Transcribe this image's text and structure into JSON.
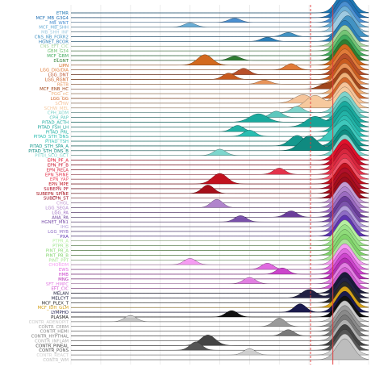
{
  "chart_data": {
    "type": "ridgeline",
    "title": "",
    "xlabel": "",
    "ylabel": "",
    "xlim": [
      0,
      1
    ],
    "grid": true,
    "legend": "none",
    "reference_lines": [
      {
        "x": 0.805,
        "style": "dashed",
        "color": "#e23a3a"
      },
      {
        "x": 0.88,
        "style": "solid",
        "color": "#e23a3a"
      }
    ],
    "series": [
      {
        "name": "ETMR",
        "color": "#1f78b4",
        "mode": 0.92,
        "minor": []
      },
      {
        "name": "MCF_MB_G3G4",
        "color": "#2171b5",
        "mode": 0.92,
        "minor": []
      },
      {
        "name": "MB_WNT",
        "color": "#4a8fd1",
        "mode": 0.92,
        "minor": [
          [
            0.55,
            0.02,
            0.2
          ]
        ]
      },
      {
        "name": "MCF_MB_SHH",
        "color": "#6baed6",
        "mode": 0.92,
        "minor": [
          [
            0.4,
            0.02,
            0.2
          ]
        ]
      },
      {
        "name": "MB_SHH_INF",
        "color": "#9ecae1",
        "mode": 0.92,
        "minor": []
      },
      {
        "name": "CNS_NB_FOXR2",
        "color": "#4393c3",
        "mode": 0.93,
        "minor": [
          [
            0.73,
            0.02,
            0.2
          ]
        ]
      },
      {
        "name": "HGNET_BCOR",
        "color": "#2c7fb8",
        "mode": 0.92,
        "minor": [
          [
            0.66,
            0.02,
            0.2
          ]
        ]
      },
      {
        "name": "CNS_EFT_CIC",
        "color": "#a8d5a2",
        "mode": 0.92,
        "minor": []
      },
      {
        "name": "GBM_G34",
        "color": "#74c476",
        "mode": 0.92,
        "minor": []
      },
      {
        "name": "MCF_GBM",
        "color": "#41ab5d",
        "mode": 0.92,
        "minor": []
      },
      {
        "name": "DLGNT",
        "color": "#2e7d32",
        "mode": 0.92,
        "minor": [
          [
            0.55,
            0.02,
            0.2
          ]
        ]
      },
      {
        "name": "LIPN",
        "color": "#d2691e",
        "mode": 0.92,
        "minor": [
          [
            0.45,
            0.025,
            0.5
          ]
        ]
      },
      {
        "name": "LGG_DIG/DIA",
        "color": "#e07b39",
        "mode": 0.92,
        "minor": [
          [
            0.74,
            0.02,
            0.3
          ]
        ]
      },
      {
        "name": "LGG_DNT",
        "color": "#b8502a",
        "mode": 0.92,
        "minor": [
          [
            0.58,
            0.02,
            0.3
          ]
        ]
      },
      {
        "name": "LGG_RGNT",
        "color": "#c85a1e",
        "mode": 0.92,
        "minor": [
          [
            0.53,
            0.02,
            0.3
          ]
        ]
      },
      {
        "name": "RETB",
        "color": "#e8945a",
        "mode": 0.92,
        "minor": [
          [
            0.65,
            0.02,
            0.2
          ]
        ]
      },
      {
        "name": "MCF_ENB_HC",
        "color": "#a0451a",
        "mode": 0.92,
        "minor": [
          [
            0.85,
            0.02,
            0.2
          ]
        ]
      },
      {
        "name": "PGG_nC",
        "color": "#f0b27a",
        "mode": 0.92,
        "minor": []
      },
      {
        "name": "LGG_GG",
        "color": "#d46a2e",
        "mode": 0.92,
        "minor": []
      },
      {
        "name": "SCHW",
        "color": "#f5c49b",
        "mode": 0.92,
        "minor": [
          [
            0.78,
            0.03,
            0.4
          ]
        ]
      },
      {
        "name": "SCHW_MEL",
        "color": "#f6c99e",
        "mode": 0.92,
        "minor": [
          [
            0.82,
            0.03,
            0.6
          ]
        ]
      },
      {
        "name": "CPH_ADM",
        "color": "#7fd3cb",
        "mode": 0.92,
        "minor": [
          [
            0.76,
            0.02,
            0.3
          ]
        ]
      },
      {
        "name": "CPH_PAP",
        "color": "#5cc7bd",
        "mode": 0.92,
        "minor": [
          [
            0.69,
            0.02,
            0.3
          ]
        ]
      },
      {
        "name": "PITAD_ACTH",
        "color": "#1aaa9e",
        "mode": 0.92,
        "minor": [
          [
            0.63,
            0.03,
            0.4
          ]
        ]
      },
      {
        "name": "PITAD_FSH_LH",
        "color": "#17a398",
        "mode": 0.92,
        "minor": [
          [
            0.82,
            0.03,
            0.5
          ]
        ]
      },
      {
        "name": "PITAD_PRL",
        "color": "#22b2a6",
        "mode": 0.92,
        "minor": [
          [
            0.56,
            0.02,
            0.3
          ]
        ]
      },
      {
        "name": "PITAD_STH_DNS",
        "color": "#2bbdb1",
        "mode": 0.92,
        "minor": [
          [
            0.6,
            0.02,
            0.3
          ]
        ]
      },
      {
        "name": "PITAD_TSH",
        "color": "#3ec7bb",
        "mode": 0.92,
        "minor": [
          [
            0.87,
            0.02,
            0.3
          ]
        ]
      },
      {
        "name": "PITAD_STH_SPA_A",
        "color": "#14998e",
        "mode": 0.92,
        "minor": [
          [
            0.76,
            0.025,
            0.5
          ]
        ]
      },
      {
        "name": "PITAD_STH_DNS_B",
        "color": "#0f8a80",
        "mode": 0.92,
        "minor": [
          [
            0.8,
            0.03,
            0.7
          ]
        ]
      },
      {
        "name": "PITUI_SCO_GCT",
        "color": "#7ed6cd",
        "mode": 0.92,
        "minor": [
          [
            0.5,
            0.02,
            0.3
          ]
        ]
      },
      {
        "name": "EPN_PF_A",
        "color": "#e0112b",
        "mode": 0.92,
        "minor": []
      },
      {
        "name": "EPN_PF_B",
        "color": "#c9102a",
        "mode": 0.92,
        "minor": []
      },
      {
        "name": "EPN_RELA",
        "color": "#d7263d",
        "mode": 0.92,
        "minor": []
      },
      {
        "name": "EPN_SPINE",
        "color": "#e3324a",
        "mode": 0.92,
        "minor": [
          [
            0.7,
            0.02,
            0.3
          ]
        ]
      },
      {
        "name": "EPN_YAP",
        "color": "#ef5368",
        "mode": 0.92,
        "minor": []
      },
      {
        "name": "EPN_MPE",
        "color": "#c1121f",
        "mode": 0.92,
        "minor": [
          [
            0.5,
            0.025,
            0.5
          ]
        ]
      },
      {
        "name": "SUBEPN_PF",
        "color": "#b0102a",
        "mode": 0.92,
        "minor": []
      },
      {
        "name": "SUBEPN_SPINE",
        "color": "#a50f1a",
        "mode": 0.92,
        "minor": [
          [
            0.46,
            0.02,
            0.4
          ]
        ]
      },
      {
        "name": "SUBEPN_ST",
        "color": "#9b0d20",
        "mode": 0.92,
        "minor": []
      },
      {
        "name": "CHGL",
        "color": "#c39bd3",
        "mode": 0.92,
        "minor": []
      },
      {
        "name": "LGG_SEGA",
        "color": "#b084cc",
        "mode": 0.92,
        "minor": [
          [
            0.49,
            0.02,
            0.4
          ]
        ]
      },
      {
        "name": "LGG_PA",
        "color": "#9b6bc0",
        "mode": 0.92,
        "minor": []
      },
      {
        "name": "ANA_PA",
        "color": "#6a3d9a",
        "mode": 0.92,
        "minor": [
          [
            0.74,
            0.02,
            0.3
          ]
        ]
      },
      {
        "name": "HGNET_MN1",
        "color": "#7b52ab",
        "mode": 0.92,
        "minor": [
          [
            0.57,
            0.02,
            0.3
          ]
        ]
      },
      {
        "name": "IHG",
        "color": "#b39ddb",
        "mode": 0.92,
        "minor": []
      },
      {
        "name": "LGG_MYB",
        "color": "#8e6cc4",
        "mode": 0.92,
        "minor": []
      },
      {
        "name": "PXA",
        "color": "#5e35b1",
        "mode": 0.92,
        "minor": []
      },
      {
        "name": "PTPR_A",
        "color": "#b6f0a0",
        "mode": 0.92,
        "minor": []
      },
      {
        "name": "PTPR_B",
        "color": "#9be38a",
        "mode": 0.92,
        "minor": []
      },
      {
        "name": "PINT_PB_A",
        "color": "#8fdc7a",
        "mode": 0.92,
        "minor": []
      },
      {
        "name": "PINT_PB_B",
        "color": "#7fd36a",
        "mode": 0.92,
        "minor": []
      },
      {
        "name": "PINT_PPT",
        "color": "#a9e596",
        "mode": 0.92,
        "minor": []
      },
      {
        "name": "CHORDM",
        "color": "#f59cf2",
        "mode": 0.92,
        "minor": [
          [
            0.4,
            0.02,
            0.3
          ]
        ]
      },
      {
        "name": "EWS",
        "color": "#e06ce0",
        "mode": 0.92,
        "minor": [
          [
            0.66,
            0.02,
            0.3
          ]
        ]
      },
      {
        "name": "HMB",
        "color": "#cc44cc",
        "mode": 0.92,
        "minor": [
          [
            0.71,
            0.02,
            0.3
          ]
        ]
      },
      {
        "name": "MNG",
        "color": "#b52fb5",
        "mode": 0.92,
        "minor": []
      },
      {
        "name": "SFT_HMPC",
        "color": "#e27fe2",
        "mode": 0.92,
        "minor": [
          [
            0.6,
            0.02,
            0.3
          ]
        ]
      },
      {
        "name": "EFT_CIC",
        "color": "#d15cd1",
        "mode": 0.92,
        "minor": []
      },
      {
        "name": "MELAN",
        "color": "#1b1b3a",
        "mode": 0.92,
        "minor": []
      },
      {
        "name": "MELCYT",
        "color": "#222244",
        "mode": 0.92,
        "minor": [
          [
            0.8,
            0.025,
            0.4
          ]
        ]
      },
      {
        "name": "MCF_PLEX_T",
        "color": "#2a2a2a",
        "mode": 0.92,
        "minor": []
      },
      {
        "name": "MCF_IDH_GLM",
        "color": "#d4a017",
        "mode": 0.92,
        "minor": []
      },
      {
        "name": "LYMPHO",
        "color": "#1a1a4d",
        "mode": 0.92,
        "minor": [
          [
            0.77,
            0.02,
            0.4
          ]
        ]
      },
      {
        "name": "PLASMA",
        "color": "#111111",
        "mode": 0.92,
        "minor": [
          [
            0.54,
            0.02,
            0.3
          ]
        ]
      },
      {
        "name": "CONTR_ADENOPIT",
        "color": "#c8c8c8",
        "mode": 0.92,
        "minor": [
          [
            0.2,
            0.02,
            0.3
          ]
        ]
      },
      {
        "name": "CONTR_CEBM",
        "color": "#9a9a9a",
        "mode": 0.92,
        "minor": [
          [
            0.7,
            0.02,
            0.4
          ]
        ]
      },
      {
        "name": "CONTR_HEMI",
        "color": "#8a8a8a",
        "mode": 0.92,
        "minor": []
      },
      {
        "name": "CONTR_HYPTHAL",
        "color": "#7a7a7a",
        "mode": 0.92,
        "minor": [
          [
            0.73,
            0.02,
            0.3
          ]
        ]
      },
      {
        "name": "CONTR_INFLAM",
        "color": "#b0b0b0",
        "mode": 0.92,
        "minor": []
      },
      {
        "name": "CONTR_PINEAL",
        "color": "#444444",
        "mode": 0.92,
        "minor": [
          [
            0.46,
            0.025,
            0.5
          ]
        ]
      },
      {
        "name": "CONTR_PONS",
        "color": "#555555",
        "mode": 0.92,
        "minor": [
          [
            0.42,
            0.02,
            0.4
          ]
        ]
      },
      {
        "name": "CONTR_REACT",
        "color": "#d0d0d0",
        "mode": 0.92,
        "minor": [
          [
            0.6,
            0.02,
            0.3
          ]
        ]
      },
      {
        "name": "CONTR_WM",
        "color": "#bdbdbd",
        "mode": 0.92,
        "minor": []
      }
    ]
  }
}
